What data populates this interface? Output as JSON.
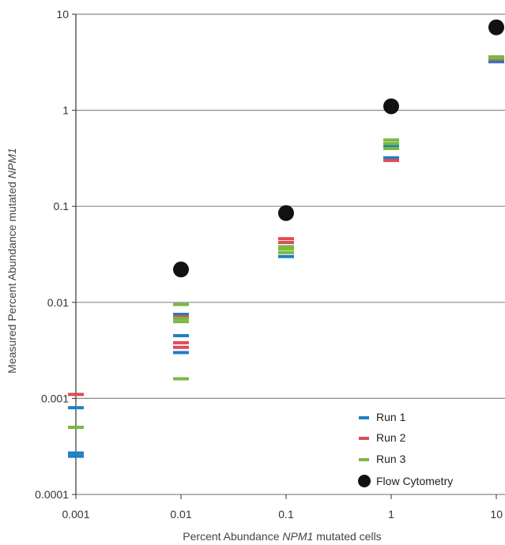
{
  "chart_data": {
    "type": "scatter",
    "x_scale": "log",
    "y_scale": "log",
    "xlim": [
      0.001,
      10
    ],
    "ylim": [
      0.0001,
      10
    ],
    "x_ticks": [
      "0.001",
      "0.01",
      "0.1",
      "1",
      "10"
    ],
    "y_ticks": [
      "0.0001",
      "0.001",
      "0.01",
      "0.1",
      "1",
      "10"
    ],
    "xlabel": {
      "pre": "Percent Abundance ",
      "italic": "NPM1",
      "post": " mutated cells"
    },
    "ylabel": {
      "pre": "Measured Percent Abundance mutated ",
      "italic": "NPM1",
      "post": ""
    },
    "grid": "horizontal",
    "legend_position": "bottom-right",
    "series": [
      {
        "name": "Run 1",
        "color": "#1f7fc4",
        "marker": "dash",
        "points": [
          {
            "x": 0.001,
            "y": 0.00027
          },
          {
            "x": 0.001,
            "y": 0.00025
          },
          {
            "x": 0.001,
            "y": 0.0008
          },
          {
            "x": 0.01,
            "y": 0.003
          },
          {
            "x": 0.01,
            "y": 0.0045
          },
          {
            "x": 0.01,
            "y": 0.0075
          },
          {
            "x": 0.1,
            "y": 0.03
          },
          {
            "x": 1,
            "y": 0.32
          },
          {
            "x": 1,
            "y": 0.43
          },
          {
            "x": 10,
            "y": 3.2
          }
        ]
      },
      {
        "name": "Run 2",
        "color": "#e04b55",
        "marker": "dash",
        "points": [
          {
            "x": 0.001,
            "y": 0.0011
          },
          {
            "x": 0.01,
            "y": 0.0034
          },
          {
            "x": 0.01,
            "y": 0.0038
          },
          {
            "x": 0.01,
            "y": 0.0071
          },
          {
            "x": 0.1,
            "y": 0.046
          },
          {
            "x": 0.1,
            "y": 0.042
          },
          {
            "x": 1,
            "y": 0.3
          },
          {
            "x": 10,
            "y": 3.4
          }
        ]
      },
      {
        "name": "Run 3",
        "color": "#7ab842",
        "marker": "dash",
        "points": [
          {
            "x": 0.001,
            "y": 0.0005
          },
          {
            "x": 0.01,
            "y": 0.0016
          },
          {
            "x": 0.01,
            "y": 0.0063
          },
          {
            "x": 0.01,
            "y": 0.0068
          },
          {
            "x": 0.01,
            "y": 0.0095
          },
          {
            "x": 0.1,
            "y": 0.033
          },
          {
            "x": 0.1,
            "y": 0.036
          },
          {
            "x": 0.1,
            "y": 0.038
          },
          {
            "x": 1,
            "y": 0.45
          },
          {
            "x": 1,
            "y": 0.49
          },
          {
            "x": 1,
            "y": 0.4
          },
          {
            "x": 10,
            "y": 3.5
          },
          {
            "x": 10,
            "y": 3.6
          }
        ]
      },
      {
        "name": "Flow Cytometry",
        "color": "#111111",
        "marker": "circle",
        "points": [
          {
            "x": 0.01,
            "y": 0.022
          },
          {
            "x": 0.1,
            "y": 0.085
          },
          {
            "x": 1,
            "y": 1.1
          },
          {
            "x": 10,
            "y": 7.3
          }
        ]
      }
    ]
  }
}
